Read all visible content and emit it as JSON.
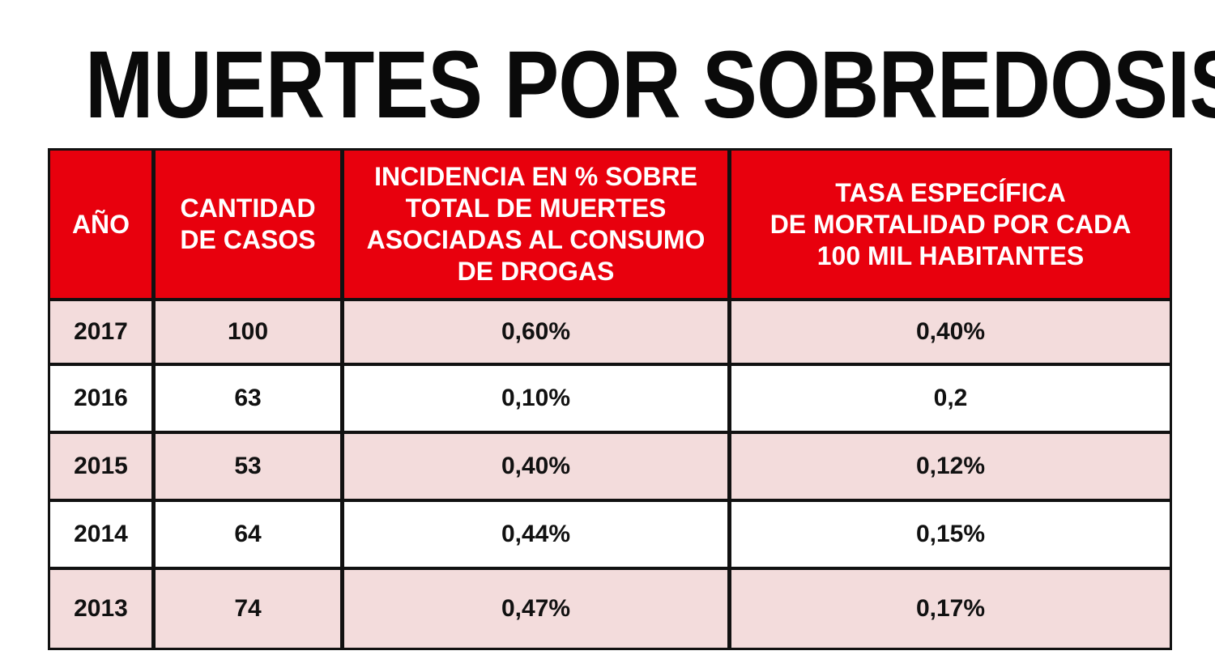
{
  "title": "MUERTES POR SOBREDOSIS",
  "colors": {
    "header_bg": "#e8000d",
    "header_text": "#ffffff",
    "shaded_row": "#f3dcdc",
    "plain_row": "#ffffff",
    "border": "#111111"
  },
  "chart_data": {
    "type": "table",
    "title": "MUERTES POR SOBREDOSIS",
    "columns": [
      [
        "AÑO"
      ],
      [
        "CANTIDAD",
        "DE CASOS"
      ],
      [
        "INCIDENCIA EN % SOBRE",
        "TOTAL DE MUERTES",
        "ASOCIADAS AL CONSUMO",
        "DE DROGAS"
      ],
      [
        "TASA ESPECÍFICA",
        "DE MORTALIDAD POR CADA",
        "100 MIL HABITANTES"
      ]
    ],
    "rows": [
      [
        "2017",
        "100",
        "0,60%",
        "0,40%"
      ],
      [
        "2016",
        "63",
        "0,10%",
        "0,2"
      ],
      [
        "2015",
        "53",
        "0,40%",
        "0,12%"
      ],
      [
        "2014",
        "64",
        "0,44%",
        "0,15%"
      ],
      [
        "2013",
        "74",
        "0,47%",
        "0,17%"
      ]
    ]
  }
}
